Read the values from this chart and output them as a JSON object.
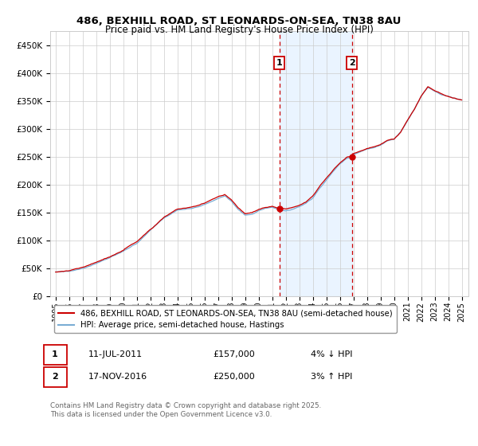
{
  "title": "486, BEXHILL ROAD, ST LEONARDS-ON-SEA, TN38 8AU",
  "subtitle": "Price paid vs. HM Land Registry's House Price Index (HPI)",
  "ylabel_ticks": [
    "£0",
    "£50K",
    "£100K",
    "£150K",
    "£200K",
    "£250K",
    "£300K",
    "£350K",
    "£400K",
    "£450K"
  ],
  "ytick_vals": [
    0,
    50000,
    100000,
    150000,
    200000,
    250000,
    300000,
    350000,
    400000,
    450000
  ],
  "ylim": [
    0,
    475000
  ],
  "sale1_date": 2011.53,
  "sale1_price": 157000,
  "sale1_label": "1",
  "sale2_date": 2016.88,
  "sale2_price": 250000,
  "sale2_label": "2",
  "hpi_color": "#7AADD4",
  "price_color": "#CC0000",
  "shade_color": "#DDEEFF",
  "annotation_box_color": "#CC0000",
  "grid_color": "#CCCCCC",
  "background_color": "#FFFFFF",
  "legend_label_price": "486, BEXHILL ROAD, ST LEONARDS-ON-SEA, TN38 8AU (semi-detached house)",
  "legend_label_hpi": "HPI: Average price, semi-detached house, Hastings",
  "table_row1": [
    "1",
    "11-JUL-2011",
    "£157,000",
    "4% ↓ HPI"
  ],
  "table_row2": [
    "2",
    "17-NOV-2016",
    "£250,000",
    "3% ↑ HPI"
  ],
  "footnote": "Contains HM Land Registry data © Crown copyright and database right 2025.\nThis data is licensed under the Open Government Licence v3.0.",
  "hpi_waypoints": [
    [
      1995.0,
      44000
    ],
    [
      1996.0,
      46000
    ],
    [
      1997.0,
      52000
    ],
    [
      1998.0,
      60000
    ],
    [
      1999.0,
      70000
    ],
    [
      2000.0,
      82000
    ],
    [
      2001.0,
      96000
    ],
    [
      2002.0,
      118000
    ],
    [
      2003.0,
      140000
    ],
    [
      2004.0,
      155000
    ],
    [
      2005.0,
      158000
    ],
    [
      2006.0,
      166000
    ],
    [
      2007.0,
      178000
    ],
    [
      2007.5,
      182000
    ],
    [
      2008.0,
      172000
    ],
    [
      2008.5,
      158000
    ],
    [
      2009.0,
      148000
    ],
    [
      2009.5,
      150000
    ],
    [
      2010.0,
      156000
    ],
    [
      2010.5,
      160000
    ],
    [
      2011.0,
      162000
    ],
    [
      2011.5,
      157000
    ],
    [
      2012.0,
      155000
    ],
    [
      2012.5,
      158000
    ],
    [
      2013.0,
      162000
    ],
    [
      2013.5,
      168000
    ],
    [
      2014.0,
      178000
    ],
    [
      2014.5,
      195000
    ],
    [
      2015.0,
      210000
    ],
    [
      2015.5,
      225000
    ],
    [
      2016.0,
      238000
    ],
    [
      2016.5,
      248000
    ],
    [
      2016.88,
      250000
    ],
    [
      2017.0,
      255000
    ],
    [
      2017.5,
      260000
    ],
    [
      2018.0,
      265000
    ],
    [
      2018.5,
      268000
    ],
    [
      2019.0,
      272000
    ],
    [
      2019.5,
      280000
    ],
    [
      2020.0,
      282000
    ],
    [
      2020.5,
      295000
    ],
    [
      2021.0,
      315000
    ],
    [
      2021.5,
      335000
    ],
    [
      2022.0,
      358000
    ],
    [
      2022.5,
      375000
    ],
    [
      2023.0,
      368000
    ],
    [
      2023.5,
      362000
    ],
    [
      2024.0,
      358000
    ],
    [
      2024.5,
      355000
    ],
    [
      2025.0,
      352000
    ]
  ]
}
